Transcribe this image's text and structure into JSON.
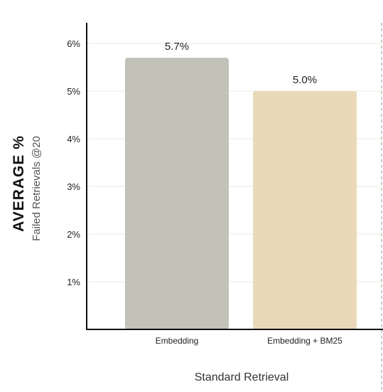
{
  "chart_data": {
    "type": "bar",
    "categories": [
      "Embedding",
      "Embedding + BM25"
    ],
    "values": [
      5.7,
      5.0
    ],
    "data_labels": [
      "5.7%",
      "5.0%"
    ],
    "bar_colors": [
      "#c3c2b9",
      "#e9d9b8"
    ],
    "ylim": [
      0,
      6.4
    ],
    "yticks": [
      1,
      2,
      3,
      4,
      5,
      6
    ],
    "ytick_labels": [
      "1%",
      "2%",
      "3%",
      "4%",
      "5%",
      "6%"
    ],
    "ytitle": "AVERAGE %",
    "ysubtitle": "Failed Retrievals @20",
    "xlabel": "Standard Retrieval",
    "grid": true,
    "gridline_color": "#ece8e2",
    "axis_color": "#111111"
  }
}
